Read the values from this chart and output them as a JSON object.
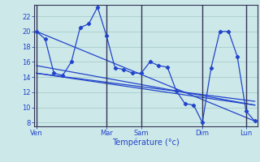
{
  "xlabel": "Température (°c)",
  "background_color": "#cce8e8",
  "grid_color": "#aacccc",
  "line_color": "#2244cc",
  "vline_color": "#333355",
  "ylim": [
    7.5,
    23.5
  ],
  "yticks": [
    8,
    10,
    12,
    14,
    16,
    18,
    20,
    22
  ],
  "x_tick_labels": [
    "Ven",
    "Mar",
    "Sam",
    "Dim",
    "Lun"
  ],
  "x_tick_positions": [
    0,
    8,
    12,
    19,
    24
  ],
  "xlim": [
    -0.3,
    25.3
  ],
  "series_x": [
    0,
    1,
    2,
    3,
    4,
    5,
    6,
    7,
    8,
    9,
    10,
    11,
    12,
    13,
    14,
    15,
    16,
    17,
    18,
    19,
    20,
    21,
    22,
    23,
    24,
    25
  ],
  "series_y": [
    20.0,
    19.0,
    14.5,
    14.2,
    16.0,
    20.5,
    21.0,
    23.2,
    19.5,
    15.2,
    15.0,
    14.5,
    14.5,
    16.0,
    15.5,
    15.3,
    12.2,
    10.5,
    10.3,
    8.0,
    15.2,
    20.0,
    20.0,
    16.7,
    9.5,
    8.2
  ],
  "trend1_x": [
    0,
    25
  ],
  "trend1_y": [
    20.0,
    8.2
  ],
  "trend2_x": [
    0,
    25
  ],
  "trend2_y": [
    15.5,
    10.3
  ],
  "trend3_x": [
    0,
    25
  ],
  "trend3_y": [
    14.5,
    10.8
  ],
  "trend4_x": [
    0,
    25
  ],
  "trend4_y": [
    14.5,
    10.3
  ],
  "vline_positions": [
    0,
    8,
    12,
    19,
    24
  ]
}
